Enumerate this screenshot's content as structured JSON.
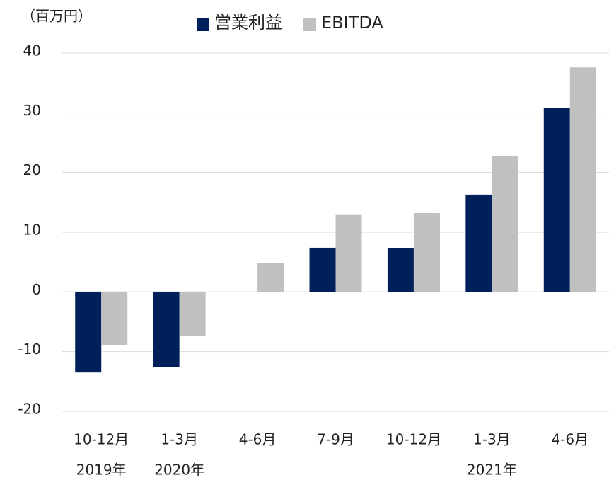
{
  "chart_data": {
    "type": "bar",
    "unit_label": "（百万円）",
    "categories": [
      "10-12月",
      "1-3月",
      "4-6月",
      "7-9月",
      "10-12月",
      "1-3月",
      "4-6月"
    ],
    "category_years": [
      "2019年",
      "2020年",
      null,
      null,
      null,
      "2021年",
      null
    ],
    "series": [
      {
        "name": "営業利益",
        "color": "#00205b",
        "values": [
          -13.5,
          -12.6,
          0,
          7.4,
          7.3,
          16.3,
          30.8
        ]
      },
      {
        "name": "EBITDA",
        "color": "#c0c0c0",
        "values": [
          -8.9,
          -7.4,
          4.8,
          13,
          13.2,
          22.7,
          37.6
        ]
      }
    ],
    "ylim": [
      -20,
      40
    ],
    "yticks": [
      -20,
      -10,
      0,
      10,
      20,
      30,
      40
    ],
    "grid": true,
    "legend": "top"
  }
}
